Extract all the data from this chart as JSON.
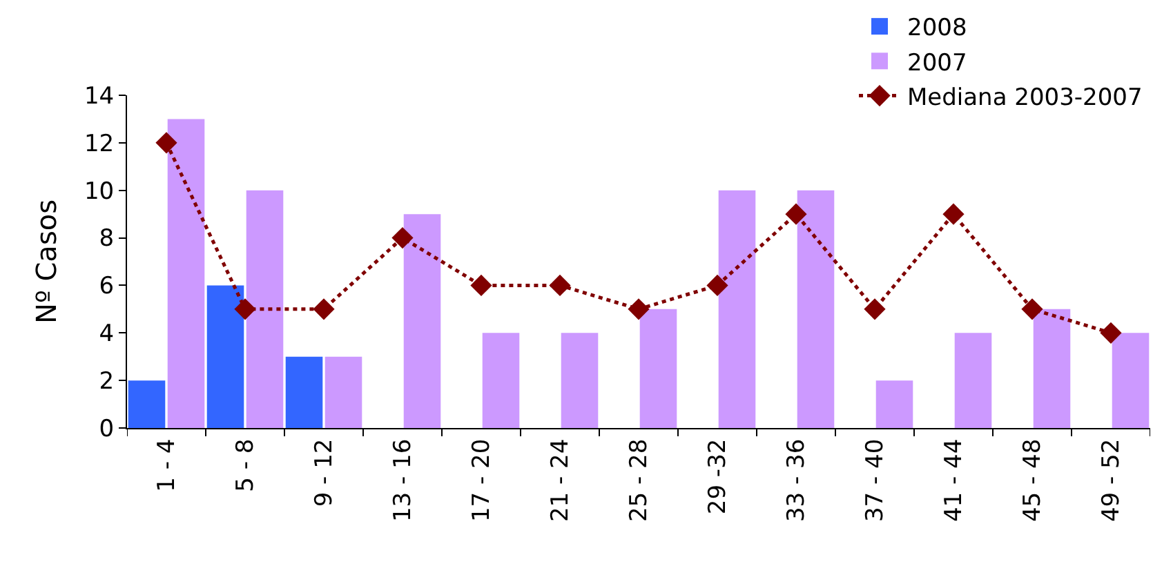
{
  "chart_data": {
    "type": "bar",
    "ylabel": "Nº Casos",
    "categories": [
      "1 - 4",
      "5 - 8",
      "9 - 12",
      "13 - 16",
      "17 - 20",
      "21 - 24",
      "25 - 28",
      "29 -32",
      "33 - 36",
      "37 - 40",
      "41 - 44",
      "45 - 48",
      "49 - 52"
    ],
    "series": [
      {
        "name": "2008",
        "color": "#3366ff",
        "values": [
          2,
          6,
          3,
          null,
          null,
          null,
          null,
          null,
          null,
          null,
          null,
          null,
          null
        ]
      },
      {
        "name": "2007",
        "color": "#cc99ff",
        "values": [
          13,
          10,
          3,
          9,
          4,
          4,
          5,
          10,
          10,
          2,
          4,
          5,
          4
        ]
      },
      {
        "name": "Mediana 2003-2007",
        "type": "line",
        "color": "#800000",
        "marker": "diamond",
        "line_style": "dotted",
        "values": [
          12,
          5,
          5,
          8,
          6,
          6,
          5,
          6,
          9,
          5,
          9,
          5,
          4
        ]
      }
    ],
    "ylim": [
      0,
      14
    ],
    "yticks": [
      0,
      2,
      4,
      6,
      8,
      10,
      12,
      14
    ],
    "grid": false,
    "legend": "top right"
  }
}
